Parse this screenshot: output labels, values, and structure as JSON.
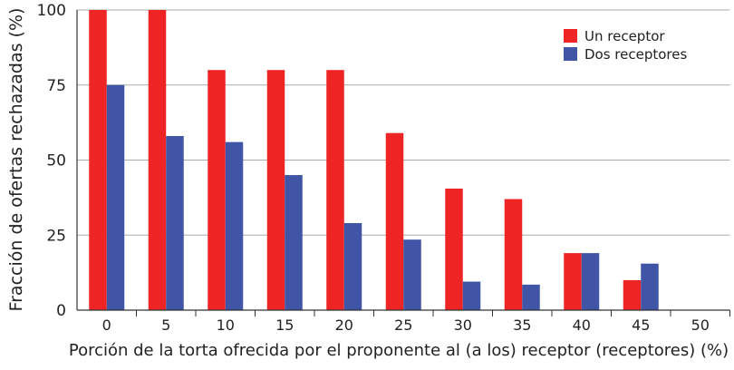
{
  "chart_data": {
    "type": "bar",
    "title": "",
    "xlabel": "Porción de la torta ofrecida por el proponente al (a los) receptor (receptores) (%)",
    "ylabel": "Fracción de ofertas rechazadas (%)",
    "categories": [
      "0",
      "5",
      "10",
      "15",
      "20",
      "25",
      "30",
      "35",
      "40",
      "45",
      "50"
    ],
    "ylim": [
      0,
      100
    ],
    "yticks": [
      "0",
      "25",
      "50",
      "75",
      "100"
    ],
    "grid": "horizontal",
    "legend_position": "top-right",
    "series": [
      {
        "name": "Un receptor",
        "color": "#ee2524",
        "values": [
          100,
          100,
          80,
          80,
          80,
          59,
          40.5,
          37,
          19,
          10,
          0
        ]
      },
      {
        "name": "Dos receptores",
        "color": "#4155a6",
        "values": [
          75,
          58,
          56,
          45,
          29,
          23.5,
          9.5,
          8.5,
          19,
          15.5,
          0
        ]
      }
    ]
  }
}
